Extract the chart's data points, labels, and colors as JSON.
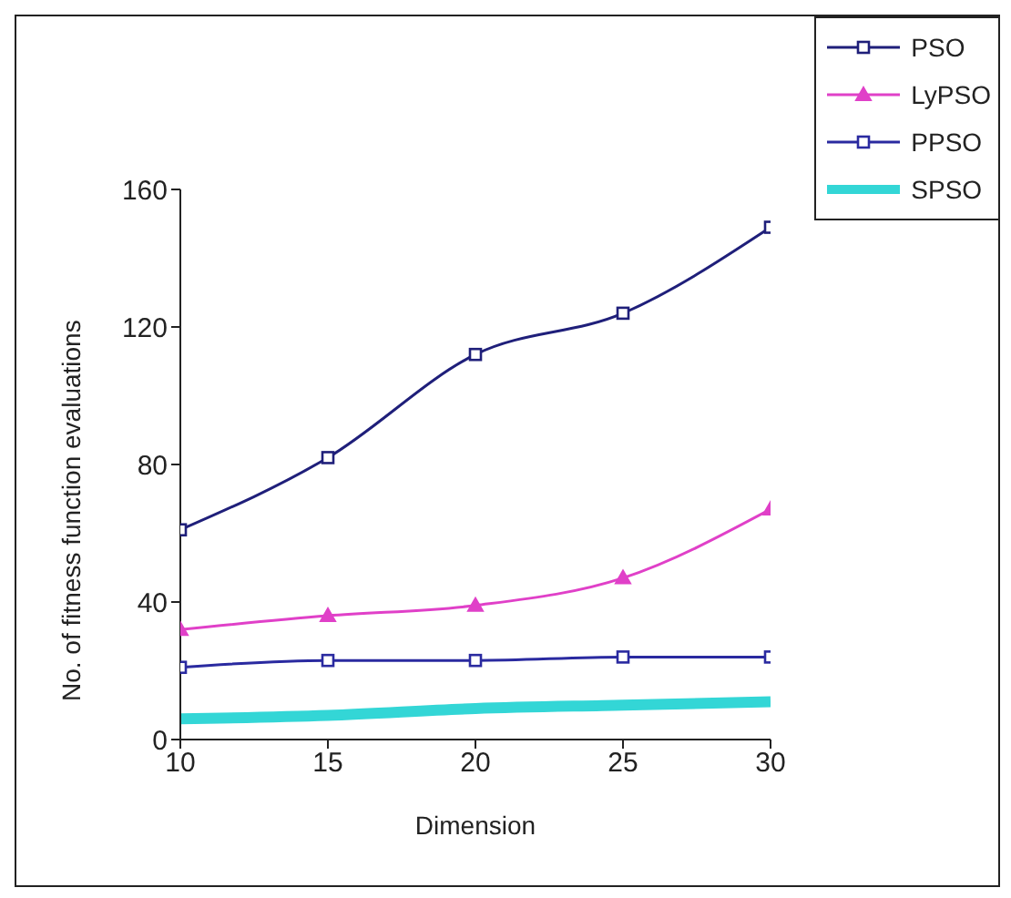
{
  "chart_data": {
    "type": "line",
    "xlabel": "Dimension",
    "ylabel": "No. of fitness function evaluations",
    "x": [
      10,
      15,
      20,
      25,
      30
    ],
    "xlim": [
      10,
      30
    ],
    "xticks": [
      10,
      15,
      20,
      25,
      30
    ],
    "ylim": [
      0,
      160
    ],
    "yticks": [
      0,
      40,
      80,
      120,
      160
    ],
    "legend": "top right",
    "series": [
      {
        "name": "PSO",
        "color": "#1f1f7a",
        "values": [
          61,
          82,
          112,
          124,
          149
        ],
        "marker": "square"
      },
      {
        "name": "LyPSO",
        "color": "#e040c8",
        "values": [
          32,
          36,
          39,
          47,
          67
        ],
        "marker": "triangle"
      },
      {
        "name": "PPSO",
        "color": "#2a2aa0",
        "values": [
          21,
          23,
          23,
          24,
          24
        ],
        "marker": "square"
      },
      {
        "name": "SPSO",
        "color": "#33d6d6",
        "values": [
          6,
          7,
          9,
          10,
          11
        ],
        "marker": "none"
      }
    ]
  }
}
